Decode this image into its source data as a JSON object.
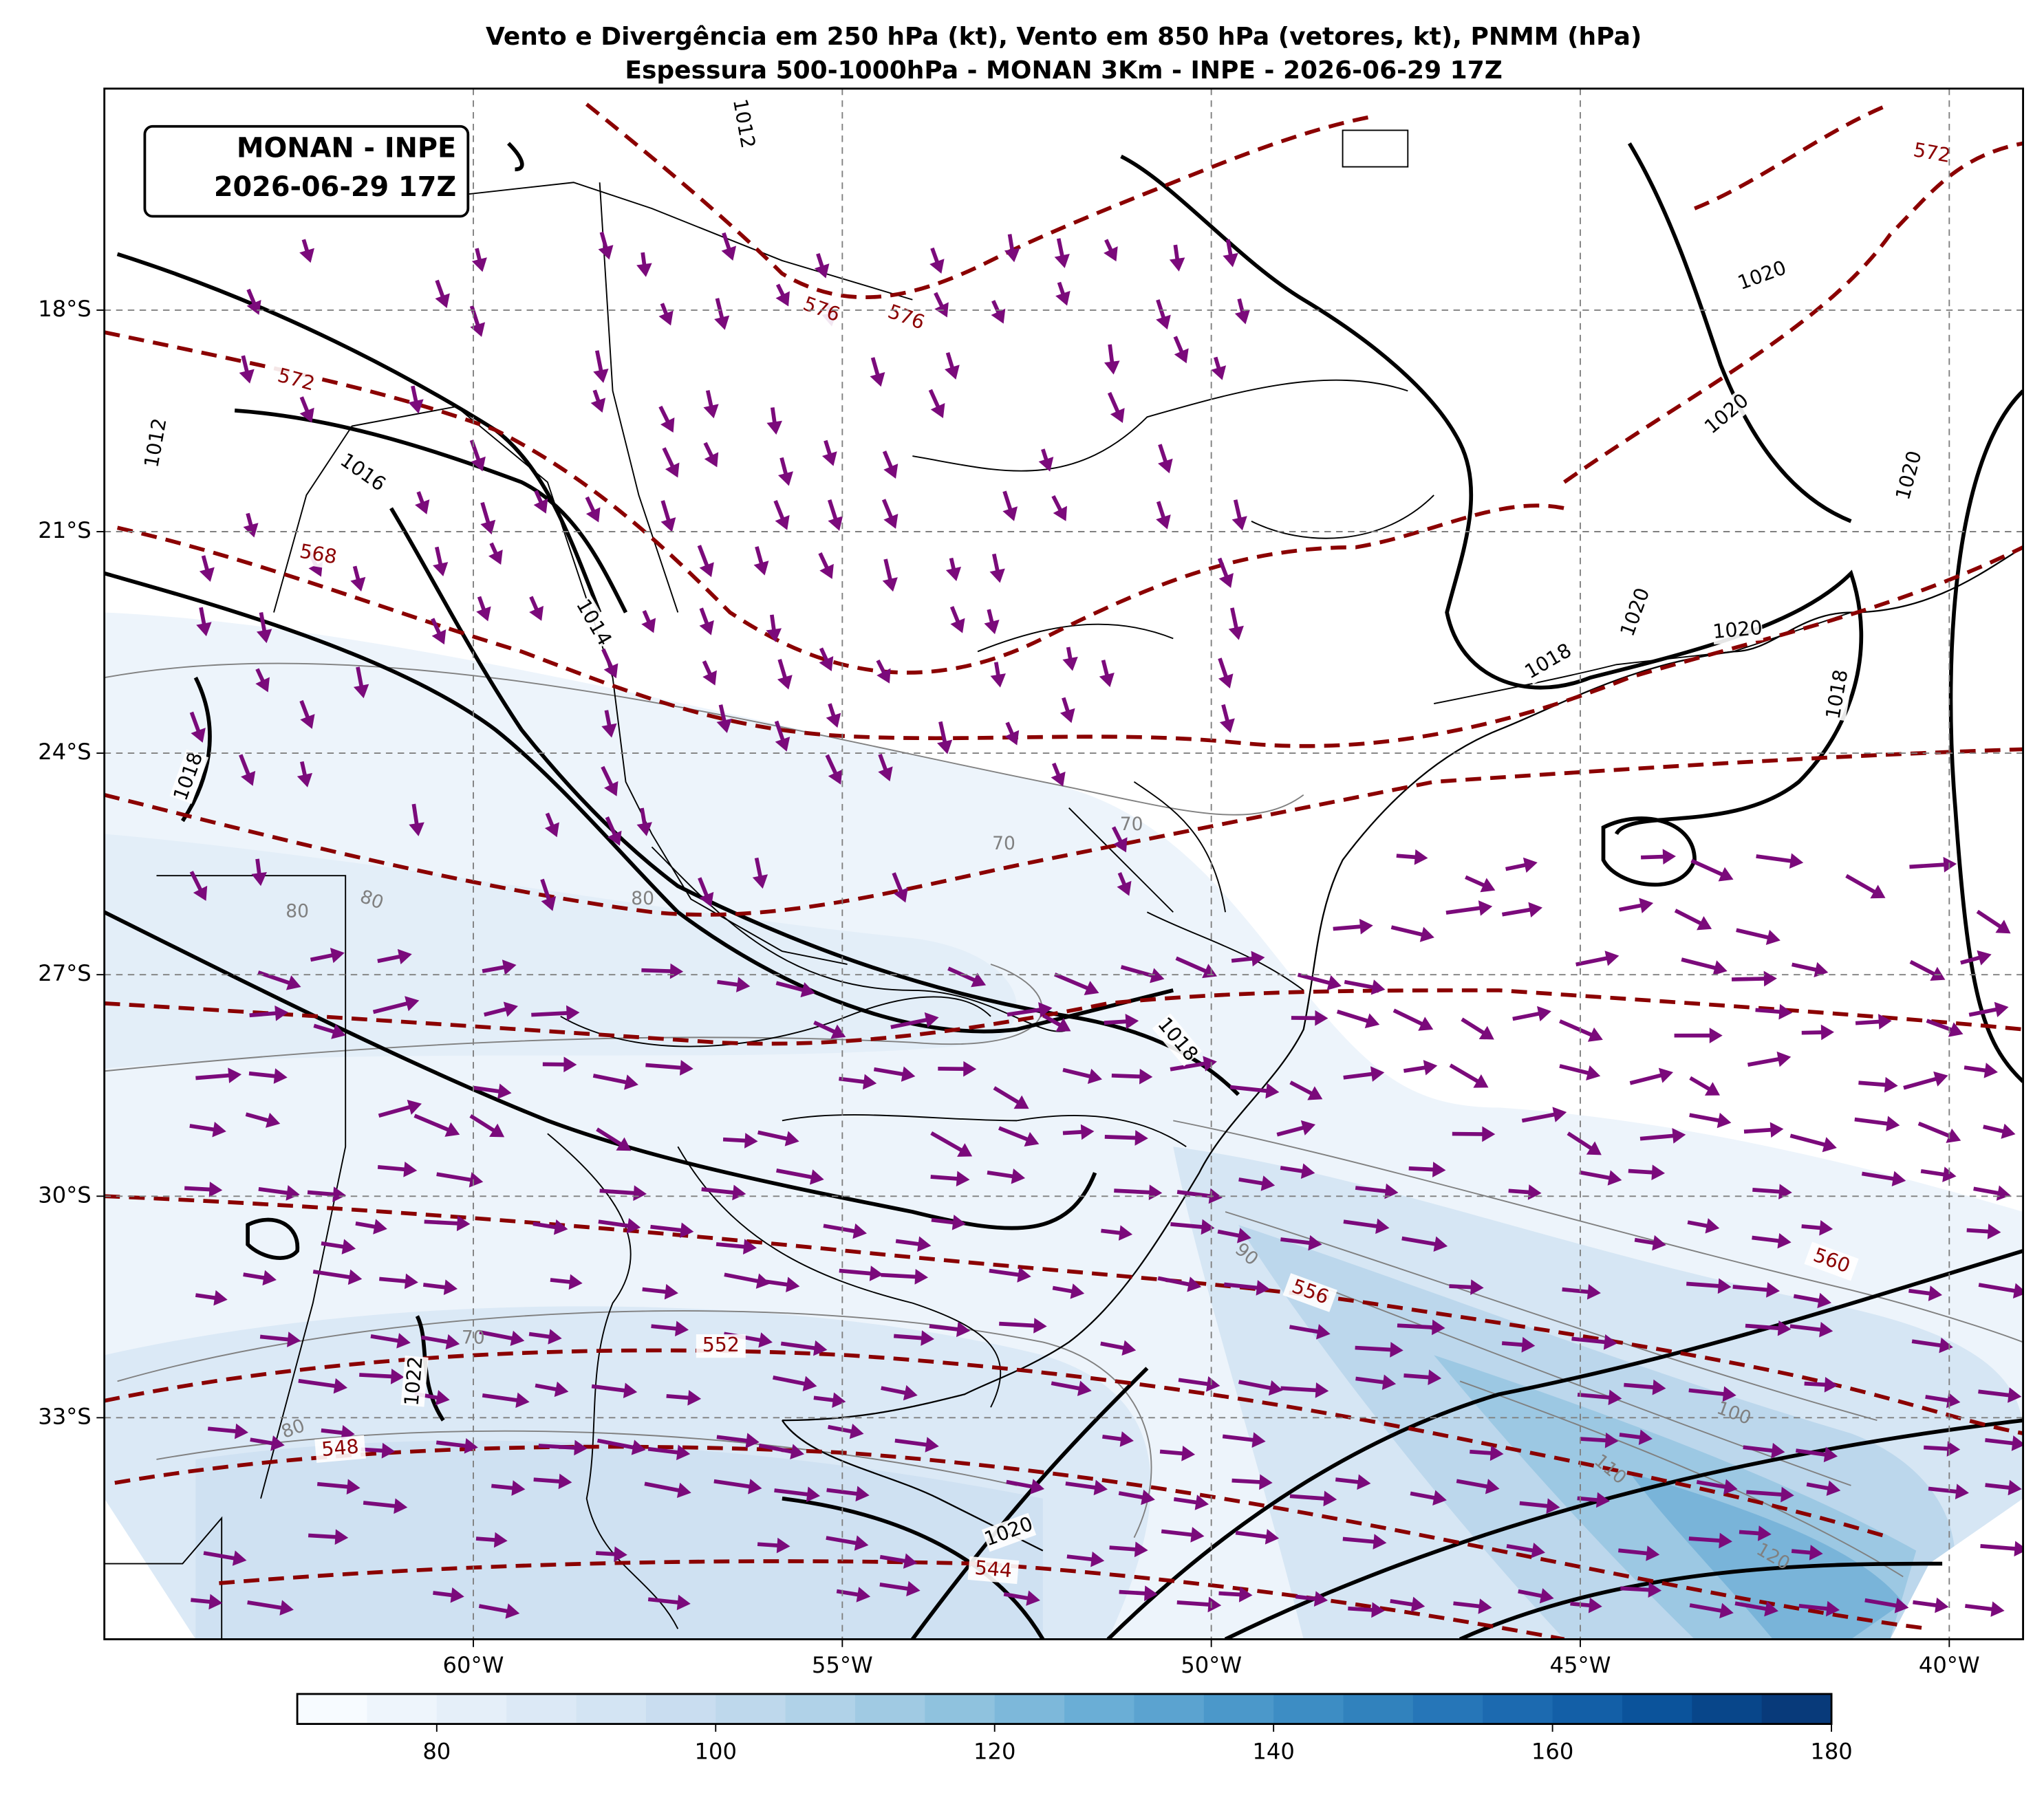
{
  "chart_data": {
    "type": "map",
    "title": "Vento e Divergência em 250 hPa (kt), Vento em 850 hPa (vetores, kt), PNMM (hPa)",
    "subtitle": "Espessura 500-1000hPa - MONAN 3Km - INPE - 2026-06-29 17Z",
    "annotation": [
      "MONAN - INPE",
      "2026-06-29 17Z"
    ],
    "xlim": [
      -65,
      -39
    ],
    "ylim": [
      -36,
      -15
    ],
    "xticks": [
      {
        "value": -60,
        "label": "60°W"
      },
      {
        "value": -55,
        "label": "55°W"
      },
      {
        "value": -50,
        "label": "50°W"
      },
      {
        "value": -45,
        "label": "45°W"
      },
      {
        "value": -40,
        "label": "40°W"
      }
    ],
    "yticks": [
      {
        "value": -18,
        "label": "18°S"
      },
      {
        "value": -21,
        "label": "21°S"
      },
      {
        "value": -24,
        "label": "24°S"
      },
      {
        "value": -27,
        "label": "27°S"
      },
      {
        "value": -30,
        "label": "30°S"
      },
      {
        "value": -33,
        "label": "33°S"
      }
    ],
    "grid": true,
    "isobar_labels": [
      1012,
      1016,
      1014,
      1018,
      1018,
      1020,
      1020,
      1020,
      1020,
      1020,
      1018,
      1018,
      1020,
      1022,
      1012
    ],
    "thickness_labels": [
      572,
      576,
      576,
      568,
      556,
      552,
      548,
      544,
      560,
      572
    ],
    "thickness_color": "#8b0000",
    "speed_labels": [
      80,
      80,
      80,
      70,
      80,
      90,
      100,
      110,
      120,
      70,
      70
    ],
    "vector_color": "#7b0a7b",
    "colorbar": {
      "lim": [
        70,
        180
      ],
      "ticks": [
        80,
        100,
        120,
        140,
        160,
        180
      ],
      "colors": [
        "#f7fbff",
        "#eef5fc",
        "#e5eff9",
        "#dce9f6",
        "#d3e4f3",
        "#c9ddf0",
        "#bed8ec",
        "#b0d2e8",
        "#a0cae3",
        "#8fc2de",
        "#7db8da",
        "#6aaed6",
        "#5ba3d0",
        "#4b98ca",
        "#3d8dc4",
        "#3182bd",
        "#2676b8",
        "#1c6ab0",
        "#135fa7",
        "#0b539b",
        "#08468a",
        "#083a7a"
      ]
    }
  }
}
